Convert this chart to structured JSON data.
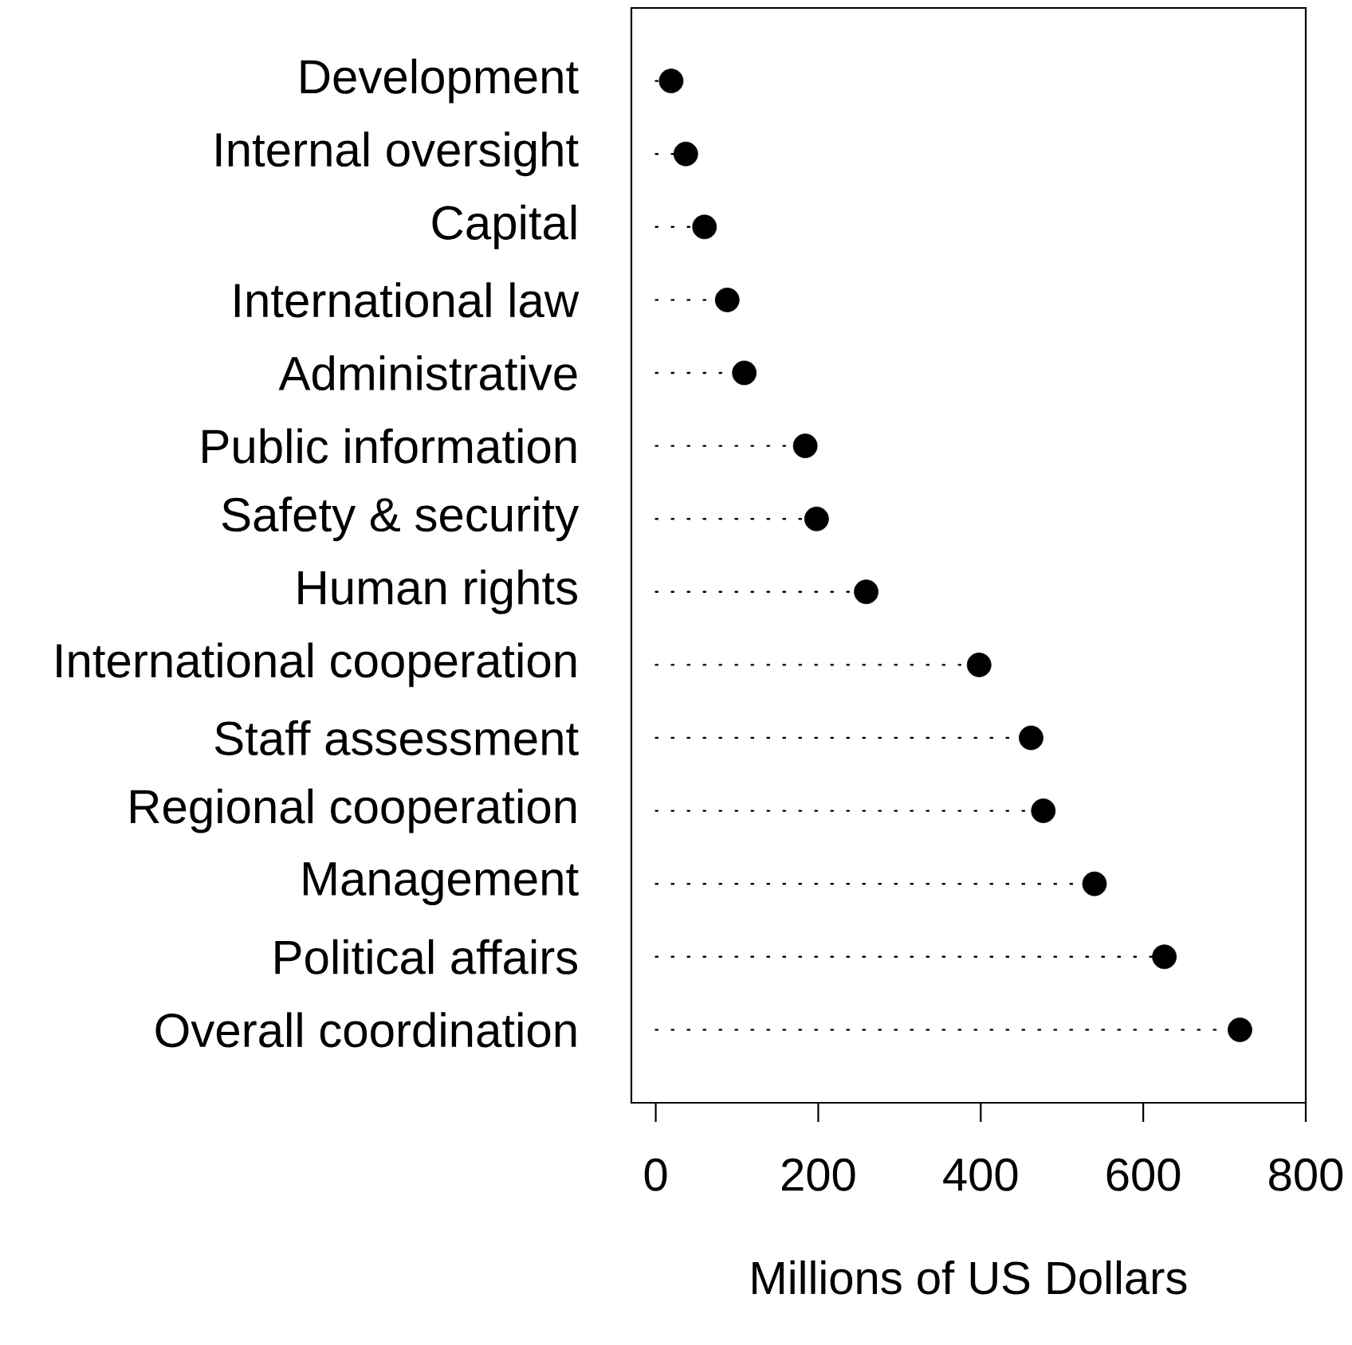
{
  "chart_data": {
    "type": "lollipop",
    "orientation": "horizontal",
    "categories": [
      "Development",
      "Internal oversight",
      "Capital",
      "International law",
      "Administrative",
      "Public information",
      "Safety & security",
      "Human rights",
      "International cooperation",
      "Staff assessment",
      "Regional cooperation",
      "Management",
      "Political affairs",
      "Overall coordination"
    ],
    "values": [
      19,
      37,
      60,
      88,
      109,
      184,
      198,
      259,
      398,
      462,
      477,
      540,
      626,
      719
    ],
    "color": "#000000",
    "xlim": [
      -30,
      800
    ],
    "xticks": [
      0,
      200,
      400,
      600,
      800
    ],
    "xlabel": "Millions of US Dollars",
    "marker": "circle",
    "line_style": "dotted"
  }
}
